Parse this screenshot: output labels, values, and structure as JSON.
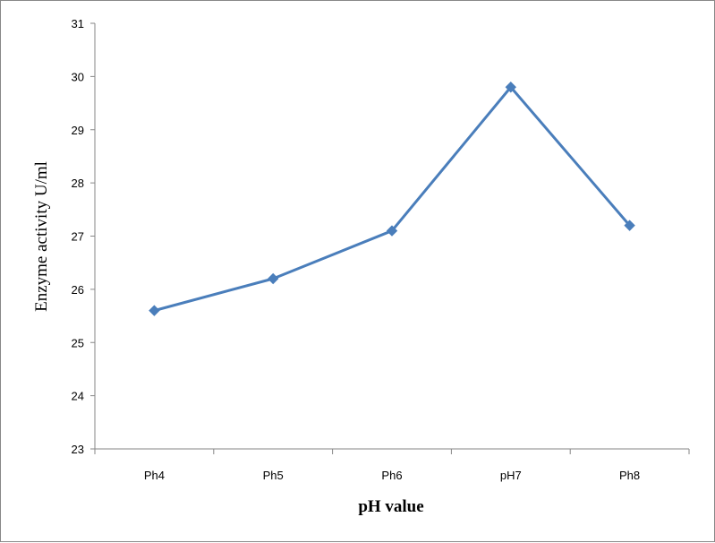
{
  "chart_data": {
    "type": "line",
    "categories": [
      "Ph4",
      "Ph5",
      "Ph6",
      "pH7",
      "Ph8"
    ],
    "series": [
      {
        "values": [
          25.6,
          26.2,
          27.1,
          29.8,
          27.2
        ],
        "color": "#4a7ebb",
        "marker": "diamond"
      }
    ],
    "xlabel": "pH value",
    "ylabel": "Enzyme activity U/ml",
    "ylim": [
      23,
      31
    ],
    "yticks": [
      23,
      24,
      25,
      26,
      27,
      28,
      29,
      30,
      31
    ],
    "grid": false,
    "legend": "none"
  }
}
